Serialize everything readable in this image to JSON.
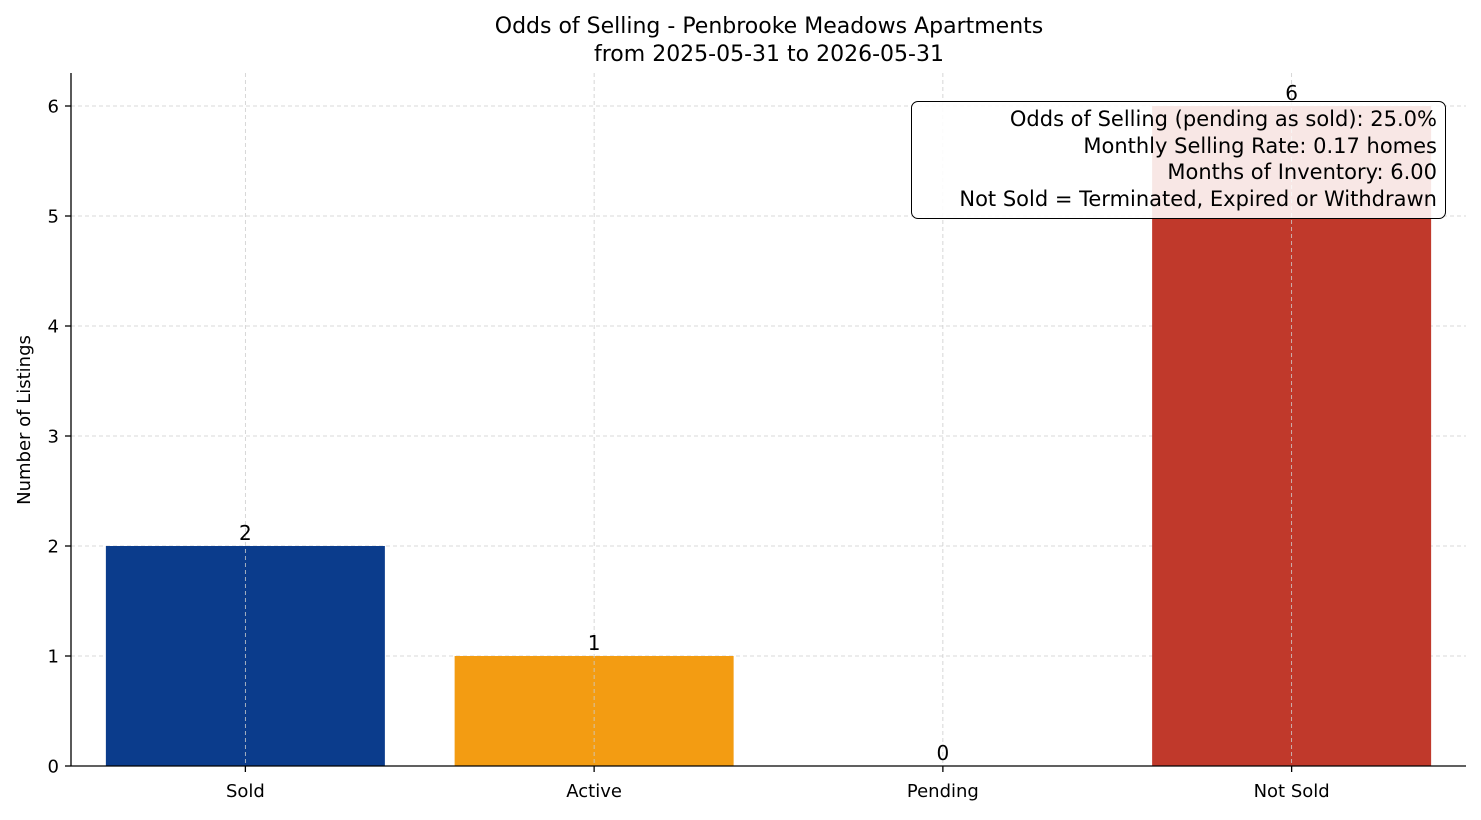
{
  "chart_data": {
    "type": "bar",
    "title": "Odds of Selling - Penbrooke Meadows Apartments",
    "subtitle": "from 2025-05-31 to 2026-05-31",
    "categories": [
      "Sold",
      "Active",
      "Pending",
      "Not Sold"
    ],
    "values": [
      2,
      1,
      0,
      6
    ],
    "value_labels": [
      "2",
      "1",
      "0",
      "6"
    ],
    "colors": [
      "#0b3c8c",
      "#f39c12",
      "#808080",
      "#c0392b"
    ],
    "xlabel": "",
    "ylabel": "Number of Listings",
    "ylim": [
      0,
      6.3
    ],
    "yticks": [
      0,
      1,
      2,
      3,
      4,
      5,
      6
    ],
    "ytick_labels": [
      "0",
      "1",
      "2",
      "3",
      "4",
      "5",
      "6"
    ],
    "grid": true,
    "legend": "none"
  },
  "stats_box": {
    "placement": "top-right",
    "lines": [
      "Odds of Selling (pending as sold): 25.0%",
      "Monthly Selling Rate: 0.17 homes",
      "Months of Inventory: 6.00",
      "Not Sold = Terminated, Expired or Withdrawn"
    ]
  }
}
